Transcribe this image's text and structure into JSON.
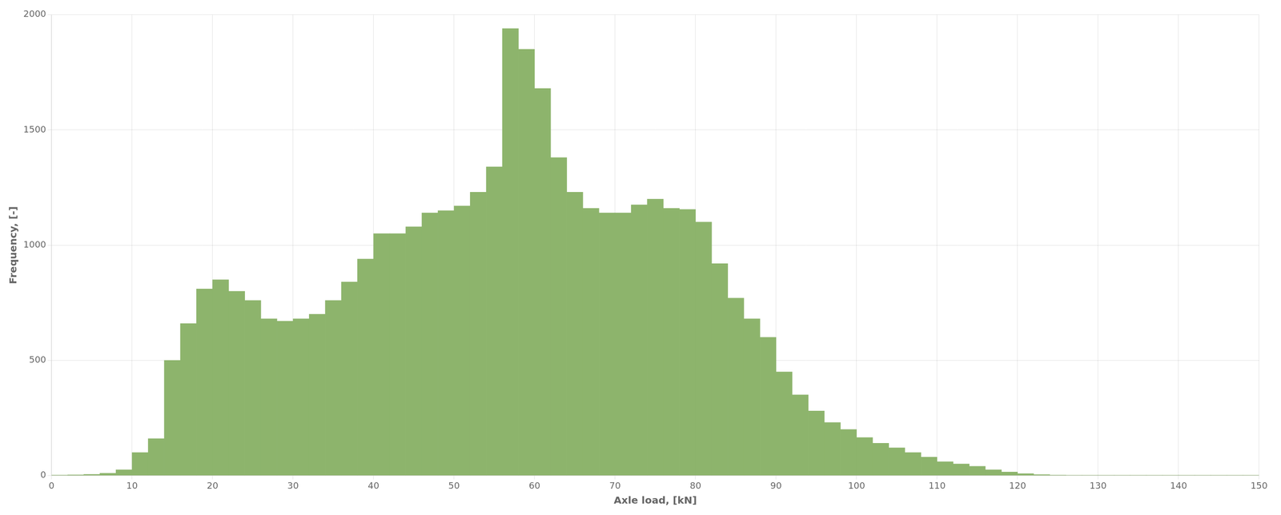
{
  "chart_data": {
    "type": "histogram",
    "xlabel": "Axle load, [kN]",
    "ylabel": "Frequency, [-]",
    "bins": [
      0,
      2,
      4,
      6,
      8,
      10,
      12,
      14,
      16,
      18,
      20,
      22,
      24,
      26,
      28,
      30,
      32,
      34,
      36,
      38,
      40,
      42,
      44,
      46,
      48,
      50,
      52,
      54,
      56,
      58,
      60,
      62,
      64,
      66,
      68,
      70,
      72,
      74,
      76,
      78,
      80,
      82,
      84,
      86,
      88,
      90,
      92,
      94,
      96,
      98,
      100,
      102,
      104,
      106,
      108,
      110,
      112,
      114,
      116,
      118,
      120,
      122,
      124,
      126,
      128,
      130,
      132,
      134,
      136,
      138,
      140,
      142,
      144,
      146,
      148,
      150
    ],
    "values": [
      2,
      3,
      5,
      10,
      25,
      100,
      160,
      500,
      660,
      810,
      850,
      800,
      760,
      680,
      670,
      680,
      700,
      760,
      840,
      940,
      1050,
      1050,
      1080,
      1140,
      1150,
      1170,
      1230,
      1340,
      1940,
      1850,
      1680,
      1380,
      1230,
      1160,
      1140,
      1140,
      1175,
      1200,
      1160,
      1155,
      1100,
      920,
      770,
      680,
      600,
      450,
      350,
      280,
      230,
      200,
      165,
      140,
      120,
      100,
      80,
      60,
      50,
      40,
      25,
      15,
      8,
      4,
      2,
      1,
      1,
      1,
      1,
      1,
      1,
      1,
      1,
      1,
      1,
      1,
      1
    ],
    "color": "#8db46c",
    "xlim": [
      0,
      150
    ],
    "ylim": [
      0,
      2000
    ],
    "xticks": [
      0,
      10,
      20,
      30,
      40,
      50,
      60,
      70,
      80,
      90,
      100,
      110,
      120,
      130,
      140,
      150
    ],
    "yticks": [
      0,
      500,
      1000,
      1500,
      2000
    ],
    "grid": true
  }
}
